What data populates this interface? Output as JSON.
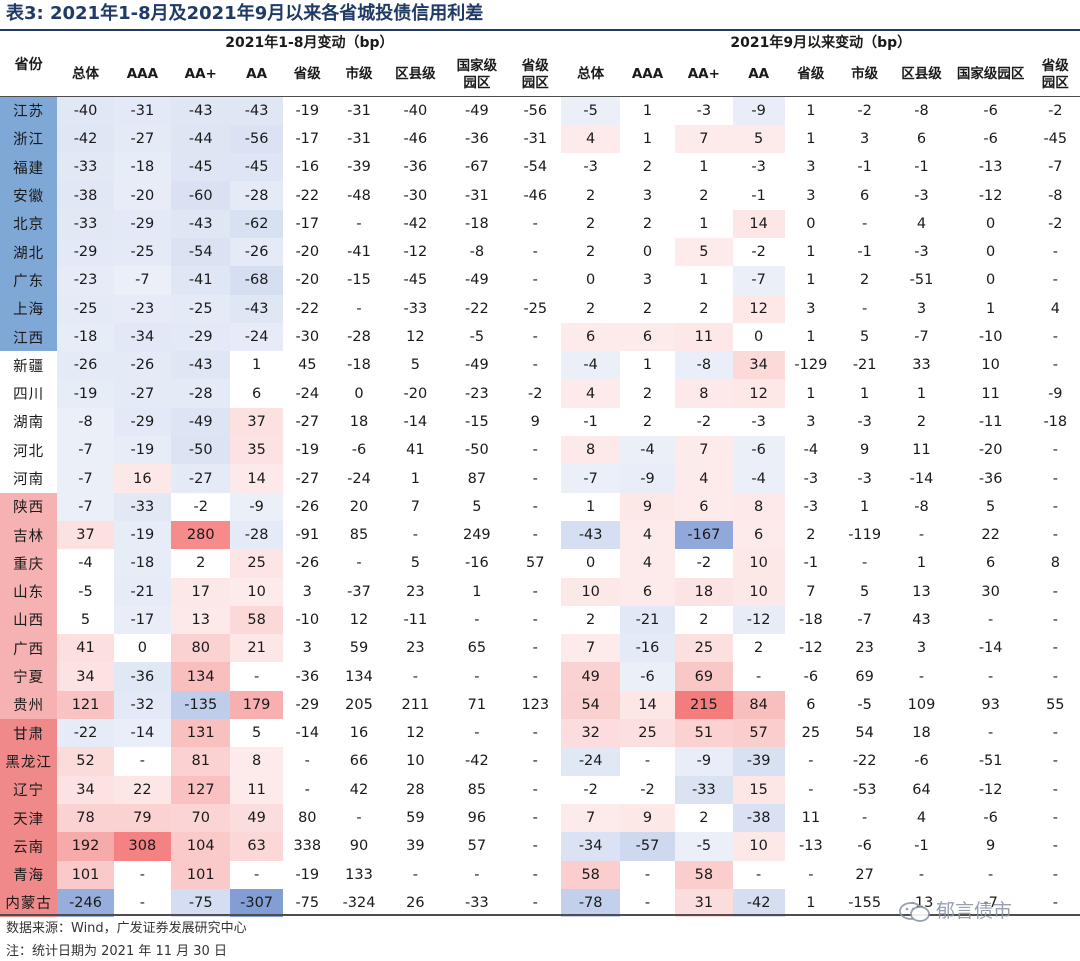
{
  "title": "表3:  2021年1-8月及2021年9月以来各省城投债信用利差",
  "header": {
    "province": "省份",
    "group1": "2021年1-8月变动（bp）",
    "group2": "2021年9月以来变动（bp）",
    "sub_columns": [
      "总体",
      "AAA",
      "AA+",
      "AA",
      "省级",
      "市级",
      "区县级",
      "国家级园区",
      "省级园区"
    ]
  },
  "rows": [
    {
      "prov": "江苏",
      "shade": "b2",
      "a": [
        "-40",
        "-31",
        "-43",
        "-43",
        "-19",
        "-31",
        "-40",
        "-49",
        "-56"
      ],
      "b": [
        "-5",
        "1",
        "-3",
        "-9",
        "1",
        "-2",
        "-8",
        "-6",
        "-2"
      ]
    },
    {
      "prov": "浙江",
      "shade": "b2",
      "a": [
        "-42",
        "-27",
        "-44",
        "-56",
        "-17",
        "-31",
        "-46",
        "-36",
        "-31"
      ],
      "b": [
        "4",
        "1",
        "7",
        "5",
        "1",
        "3",
        "6",
        "-6",
        "-45"
      ]
    },
    {
      "prov": "福建",
      "shade": "b2",
      "a": [
        "-33",
        "-18",
        "-45",
        "-45",
        "-16",
        "-39",
        "-36",
        "-67",
        "-54"
      ],
      "b": [
        "-3",
        "2",
        "1",
        "-3",
        "3",
        "-1",
        "-1",
        "-13",
        "-7"
      ]
    },
    {
      "prov": "安徽",
      "shade": "b2",
      "a": [
        "-38",
        "-20",
        "-60",
        "-28",
        "-22",
        "-48",
        "-30",
        "-31",
        "-46"
      ],
      "b": [
        "2",
        "3",
        "2",
        "-1",
        "3",
        "6",
        "-3",
        "-12",
        "-8"
      ]
    },
    {
      "prov": "北京",
      "shade": "b2",
      "a": [
        "-33",
        "-29",
        "-43",
        "-62",
        "-17",
        "-",
        "-42",
        "-18",
        "-"
      ],
      "b": [
        "2",
        "2",
        "1",
        "14",
        "0",
        "-",
        "4",
        "0",
        "-2"
      ]
    },
    {
      "prov": "湖北",
      "shade": "b2",
      "a": [
        "-29",
        "-25",
        "-54",
        "-26",
        "-20",
        "-41",
        "-12",
        "-8",
        "-"
      ],
      "b": [
        "2",
        "0",
        "5",
        "-2",
        "1",
        "-1",
        "-3",
        "0",
        "-"
      ]
    },
    {
      "prov": "广东",
      "shade": "b2",
      "a": [
        "-23",
        "-7",
        "-41",
        "-68",
        "-20",
        "-15",
        "-45",
        "-49",
        "-"
      ],
      "b": [
        "0",
        "3",
        "1",
        "-7",
        "1",
        "2",
        "-51",
        "0",
        "-"
      ]
    },
    {
      "prov": "上海",
      "shade": "b2",
      "a": [
        "-25",
        "-23",
        "-25",
        "-43",
        "-22",
        "-",
        "-33",
        "-22",
        "-25"
      ],
      "b": [
        "2",
        "2",
        "2",
        "12",
        "3",
        "-",
        "3",
        "1",
        "4"
      ]
    },
    {
      "prov": "江西",
      "shade": "b2",
      "a": [
        "-18",
        "-34",
        "-29",
        "-24",
        "-30",
        "-28",
        "12",
        "-5",
        "-"
      ],
      "b": [
        "6",
        "6",
        "11",
        "0",
        "1",
        "5",
        "-7",
        "-10",
        "-"
      ]
    },
    {
      "prov": "新疆",
      "shade": "b1",
      "a": [
        "-26",
        "-26",
        "-43",
        "1",
        "45",
        "-18",
        "5",
        "-49",
        "-"
      ],
      "b": [
        "-4",
        "1",
        "-8",
        "34",
        "-129",
        "-21",
        "33",
        "10",
        "-"
      ]
    },
    {
      "prov": "四川",
      "shade": "b1",
      "a": [
        "-19",
        "-27",
        "-28",
        "6",
        "-24",
        "0",
        "-20",
        "-23",
        "-2"
      ],
      "b": [
        "4",
        "2",
        "8",
        "12",
        "1",
        "1",
        "1",
        "11",
        "-9"
      ]
    },
    {
      "prov": "湖南",
      "shade": "b1",
      "a": [
        "-8",
        "-29",
        "-49",
        "37",
        "-27",
        "18",
        "-14",
        "-15",
        "9"
      ],
      "b": [
        "-1",
        "2",
        "-2",
        "-3",
        "3",
        "-3",
        "2",
        "-11",
        "-18"
      ]
    },
    {
      "prov": "河北",
      "shade": "b1",
      "a": [
        "-7",
        "-19",
        "-50",
        "35",
        "-19",
        "-6",
        "41",
        "-50",
        "-"
      ],
      "b": [
        "8",
        "-4",
        "7",
        "-6",
        "-4",
        "9",
        "11",
        "-20",
        "-"
      ]
    },
    {
      "prov": "河南",
      "shade": "b1",
      "a": [
        "-7",
        "16",
        "-27",
        "14",
        "-27",
        "-24",
        "1",
        "87",
        "-"
      ],
      "b": [
        "-7",
        "-9",
        "4",
        "-4",
        "-3",
        "-3",
        "-14",
        "-36",
        "-"
      ]
    },
    {
      "prov": "陕西",
      "shade": "r1",
      "a": [
        "-7",
        "-33",
        "-2",
        "-9",
        "-26",
        "20",
        "7",
        "5",
        "-"
      ],
      "b": [
        "1",
        "9",
        "6",
        "8",
        "-3",
        "1",
        "-8",
        "5",
        "-"
      ]
    },
    {
      "prov": "吉林",
      "shade": "r1",
      "a": [
        "37",
        "-19",
        "280",
        "-28",
        "-91",
        "85",
        "-",
        "249",
        "-"
      ],
      "b": [
        "-43",
        "4",
        "-167",
        "6",
        "2",
        "-119",
        "-",
        "22",
        "-"
      ]
    },
    {
      "prov": "重庆",
      "shade": "r1",
      "a": [
        "-4",
        "-18",
        "2",
        "25",
        "-26",
        "-",
        "5",
        "-16",
        "57"
      ],
      "b": [
        "0",
        "4",
        "-2",
        "10",
        "-1",
        "-",
        "1",
        "6",
        "8"
      ]
    },
    {
      "prov": "山东",
      "shade": "r1",
      "a": [
        "-5",
        "-21",
        "17",
        "10",
        "3",
        "-37",
        "23",
        "1",
        "-"
      ],
      "b": [
        "10",
        "6",
        "18",
        "10",
        "7",
        "5",
        "13",
        "30",
        "-"
      ]
    },
    {
      "prov": "山西",
      "shade": "r1",
      "a": [
        "5",
        "-17",
        "13",
        "58",
        "-10",
        "12",
        "-11",
        "-",
        "-"
      ],
      "b": [
        "2",
        "-21",
        "2",
        "-12",
        "-18",
        "-7",
        "43",
        "-",
        "-"
      ]
    },
    {
      "prov": "广西",
      "shade": "r1",
      "a": [
        "41",
        "0",
        "80",
        "21",
        "3",
        "59",
        "23",
        "65",
        "-"
      ],
      "b": [
        "7",
        "-16",
        "25",
        "2",
        "-12",
        "23",
        "3",
        "-14",
        "-"
      ]
    },
    {
      "prov": "宁夏",
      "shade": "r1",
      "a": [
        "34",
        "-36",
        "134",
        "-",
        "-36",
        "134",
        "-",
        "-",
        "-"
      ],
      "b": [
        "49",
        "-6",
        "69",
        "-",
        "-6",
        "69",
        "-",
        "-",
        "-"
      ]
    },
    {
      "prov": "贵州",
      "shade": "r1",
      "a": [
        "121",
        "-32",
        "-135",
        "179",
        "-29",
        "205",
        "211",
        "71",
        "123"
      ],
      "b": [
        "54",
        "14",
        "215",
        "84",
        "6",
        "-5",
        "109",
        "93",
        "55"
      ]
    },
    {
      "prov": "甘肃",
      "shade": "r2",
      "a": [
        "-22",
        "-14",
        "131",
        "5",
        "-14",
        "16",
        "12",
        "-",
        "-"
      ],
      "b": [
        "32",
        "25",
        "51",
        "57",
        "25",
        "54",
        "18",
        "-",
        "-"
      ]
    },
    {
      "prov": "黑龙江",
      "shade": "r2",
      "a": [
        "52",
        "-",
        "81",
        "8",
        "-",
        "66",
        "10",
        "-42",
        "-"
      ],
      "b": [
        "-24",
        "-",
        "-9",
        "-39",
        "-",
        "-22",
        "-6",
        "-51",
        "-"
      ]
    },
    {
      "prov": "辽宁",
      "shade": "r2",
      "a": [
        "34",
        "22",
        "127",
        "11",
        "-",
        "42",
        "28",
        "85",
        "-"
      ],
      "b": [
        "-2",
        "-2",
        "-33",
        "15",
        "-",
        "-53",
        "64",
        "-12",
        "-"
      ]
    },
    {
      "prov": "天津",
      "shade": "r2",
      "a": [
        "78",
        "79",
        "70",
        "49",
        "80",
        "-",
        "59",
        "96",
        "-"
      ],
      "b": [
        "7",
        "9",
        "2",
        "-38",
        "11",
        "-",
        "4",
        "-6",
        "-"
      ]
    },
    {
      "prov": "云南",
      "shade": "r2",
      "a": [
        "192",
        "308",
        "104",
        "63",
        "338",
        "90",
        "39",
        "57",
        "-"
      ],
      "b": [
        "-34",
        "-57",
        "-5",
        "10",
        "-13",
        "-6",
        "-1",
        "9",
        "-"
      ]
    },
    {
      "prov": "青海",
      "shade": "r2",
      "a": [
        "101",
        "-",
        "101",
        "-",
        "-19",
        "133",
        "-",
        "-",
        "-"
      ],
      "b": [
        "58",
        "-",
        "58",
        "-",
        "-",
        "27",
        "-",
        "-",
        "-"
      ]
    },
    {
      "prov": "内蒙古",
      "shade": "r2",
      "a": [
        "-246",
        "-",
        "-75",
        "-307",
        "-75",
        "-324",
        "26",
        "-33",
        "-"
      ],
      "b": [
        "-78",
        "-",
        "31",
        "-42",
        "1",
        "-155",
        "-13",
        "-7",
        "-"
      ]
    }
  ],
  "footer": {
    "source": "数据来源：Wind，广发证券发展研究中心",
    "note": "注：统计日期为 2021 年 11 月 30 日"
  },
  "watermark": "郁言债市",
  "colors": {
    "title": "#1f3a66",
    "blue_strong": "#7fa8d6",
    "blue_soft": "#a9c6e6",
    "red_strong": "#f08a8a",
    "red_soft": "#f6b2b2",
    "heat_blue": "#6f8fcf",
    "heat_red": "#f26f6f"
  }
}
